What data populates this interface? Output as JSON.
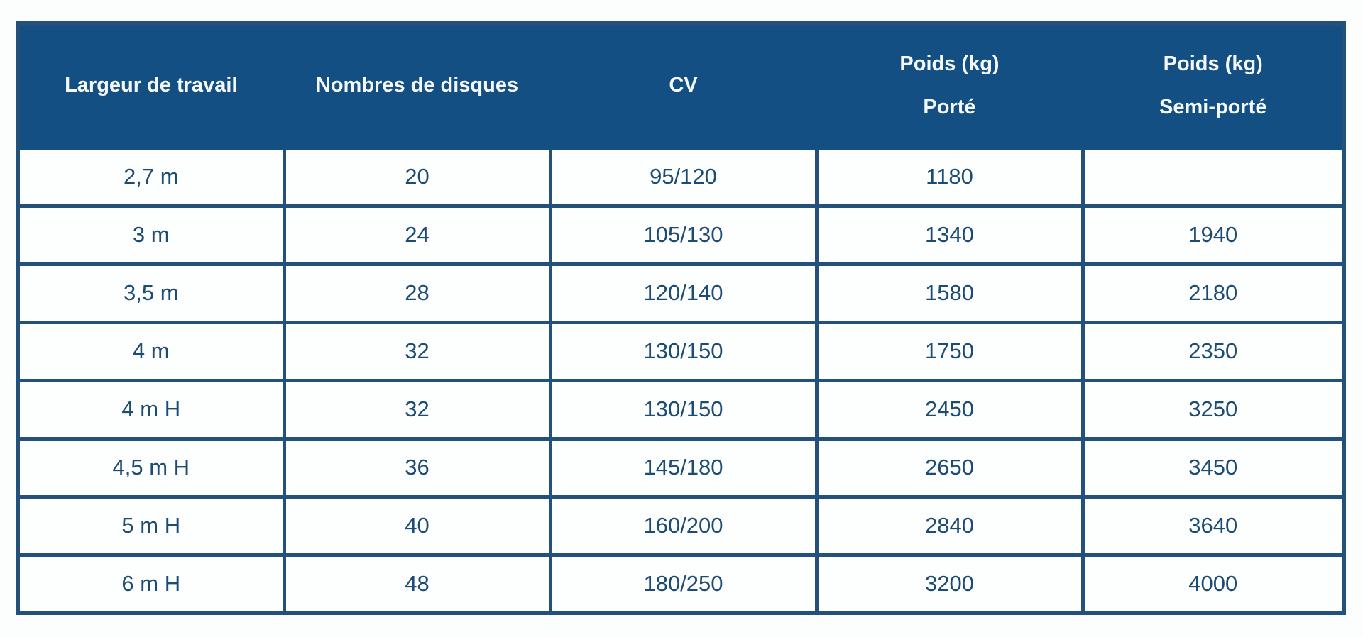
{
  "colors": {
    "header_bg": "#134f82",
    "header_text": "#f4f8fb",
    "border": "#24507c",
    "cell_text": "#1c4b74",
    "cell_bg": "#fdfefe",
    "page_bg": "#fcfdfd"
  },
  "chart_data": {
    "type": "table",
    "title": "",
    "columns": [
      {
        "label": "Largeur de travail",
        "sub": ""
      },
      {
        "label": "Nombres de disques",
        "sub": ""
      },
      {
        "label": "CV",
        "sub": ""
      },
      {
        "label": "Poids (kg)",
        "sub": "Porté"
      },
      {
        "label": "Poids (kg)",
        "sub": "Semi-porté"
      }
    ],
    "rows": [
      [
        "2,7 m",
        "20",
        "95/120",
        "1180",
        ""
      ],
      [
        "3 m",
        "24",
        "105/130",
        "1340",
        "1940"
      ],
      [
        "3,5 m",
        "28",
        "120/140",
        "1580",
        "2180"
      ],
      [
        "4 m",
        "32",
        "130/150",
        "1750",
        "2350"
      ],
      [
        "4 m H",
        "32",
        "130/150",
        "2450",
        "3250"
      ],
      [
        "4,5 m H",
        "36",
        "145/180",
        "2650",
        "3450"
      ],
      [
        "5 m H",
        "40",
        "160/200",
        "2840",
        "3640"
      ],
      [
        "6 m H",
        "48",
        "180/250",
        "3200",
        "4000"
      ]
    ]
  }
}
